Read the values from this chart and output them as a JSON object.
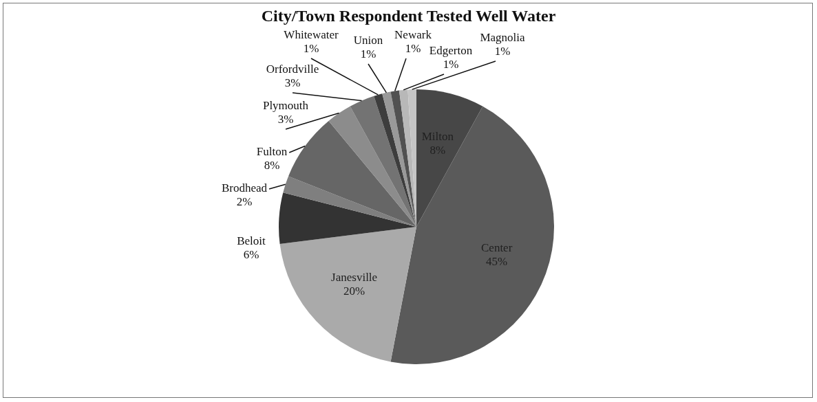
{
  "chart_data": {
    "type": "pie",
    "title": "City/Town Respondent Tested Well Water",
    "categories": [
      "Milton",
      "Center",
      "Janesville",
      "Beloit",
      "Brodhead",
      "Fulton",
      "Plymouth",
      "Orfordville",
      "Whitewater",
      "Union",
      "Newark",
      "Edgerton",
      "Magnolia"
    ],
    "values": [
      8,
      45,
      20,
      6,
      2,
      8,
      3,
      3,
      1,
      1,
      1,
      1,
      1
    ],
    "value_labels": [
      "8%",
      "45%",
      "20%",
      "6%",
      "2%",
      "8%",
      "3%",
      "3%",
      "1%",
      "1%",
      "1%",
      "1%",
      "1%"
    ],
    "colors": [
      "#474747",
      "#5a5a5a",
      "#aaaaaa",
      "#333333",
      "#7f7f7f",
      "#666666",
      "#8c8c8c",
      "#737373",
      "#3d3d3d",
      "#999999",
      "#515151",
      "#b8b8b8",
      "#c5c5c5"
    ],
    "legend": false
  }
}
